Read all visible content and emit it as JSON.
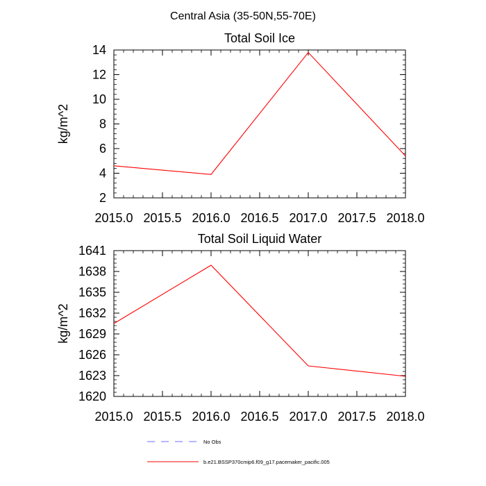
{
  "suptitle": "Central Asia (35-50N,55-70E)",
  "colors": {
    "model_line": "#ff0000",
    "obs_line": "#6b6bff",
    "axes": "#000000"
  },
  "legend": {
    "items": [
      {
        "label": "No Obs",
        "style": "dashed",
        "color": "#6b6bff"
      },
      {
        "label": "b.e21.BSSP370cmip6.f09_g17.pacemaker_pacific.005",
        "style": "solid",
        "color": "#ff0000"
      }
    ]
  },
  "chart_data": [
    {
      "type": "line",
      "title": "Total Soil Ice",
      "xlabel": "",
      "ylabel": "kg/m^2",
      "xlim": [
        2015.0,
        2018.0
      ],
      "ylim": [
        2,
        14
      ],
      "xticks": [
        "2015.0",
        "2015.5",
        "2016.0",
        "2016.5",
        "2017.0",
        "2017.5",
        "2018.0"
      ],
      "yticks": [
        "2",
        "4",
        "6",
        "8",
        "10",
        "12",
        "14"
      ],
      "grid": false,
      "series": [
        {
          "name": "b.e21.BSSP370cmip6.f09_g17.pacemaker_pacific.005",
          "x": [
            2015.0,
            2016.0,
            2017.0,
            2018.0
          ],
          "y": [
            4.6,
            3.9,
            13.8,
            5.4
          ]
        }
      ]
    },
    {
      "type": "line",
      "title": "Total Soil Liquid Water",
      "xlabel": "",
      "ylabel": "kg/m^2",
      "xlim": [
        2015.0,
        2018.0
      ],
      "ylim": [
        1620,
        1641
      ],
      "xticks": [
        "2015.0",
        "2015.5",
        "2016.0",
        "2016.5",
        "2017.0",
        "2017.5",
        "2018.0"
      ],
      "yticks": [
        "1620",
        "1623",
        "1626",
        "1629",
        "1632",
        "1635",
        "1638",
        "1641"
      ],
      "grid": false,
      "series": [
        {
          "name": "b.e21.BSSP370cmip6.f09_g17.pacemaker_pacific.005",
          "x": [
            2015.0,
            2016.0,
            2017.0,
            2018.0
          ],
          "y": [
            1630.5,
            1638.9,
            1624.4,
            1622.9
          ]
        }
      ]
    }
  ]
}
